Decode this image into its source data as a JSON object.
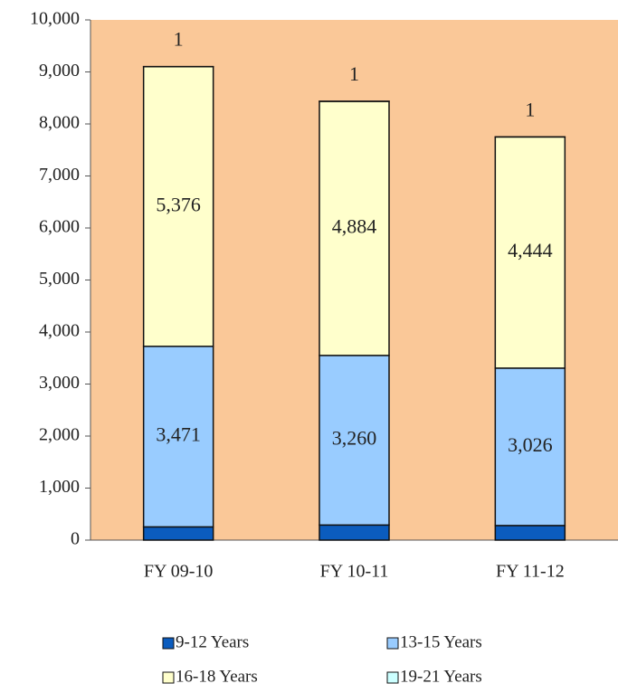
{
  "chart_data": {
    "type": "bar",
    "stacked": true,
    "categories": [
      "FY 09-10",
      "FY 10-11",
      "FY 11-12"
    ],
    "series": [
      {
        "name": "9-12 Years",
        "color": "#0b5cbe",
        "label_color": "#ffffff",
        "values": [
          254,
          290,
          280
        ]
      },
      {
        "name": "13-15 Years",
        "color": "#99ccff",
        "label_color": "#222222",
        "values": [
          3471,
          3260,
          3026
        ],
        "value_labels": [
          "3,471",
          "3,260",
          "3,026"
        ]
      },
      {
        "name": "16-18 Years",
        "color": "#ffffcc",
        "label_color": "#222222",
        "values": [
          5376,
          4884,
          4444
        ],
        "value_labels": [
          "5,376",
          "4,884",
          "4,444"
        ]
      },
      {
        "name": "19-21 Years",
        "color": "#ccffff",
        "label_color": "#222222",
        "values": [
          1,
          1,
          1
        ]
      }
    ],
    "ylim": [
      0,
      10000
    ],
    "yticks": [
      0,
      {
        "value": 1000,
        "label": "1,000"
      },
      {
        "value": 2000,
        "label": "2,000"
      },
      {
        "value": 3000,
        "label": "3,000"
      },
      {
        "value": 4000,
        "label": "4,000"
      },
      {
        "value": 5000,
        "label": "5,000"
      },
      {
        "value": 6000,
        "label": "6,000"
      },
      {
        "value": 7000,
        "label": "7,000"
      },
      {
        "value": 8000,
        "label": "8,000"
      },
      {
        "value": 9000,
        "label": "9,000"
      },
      {
        "value": 10000,
        "label": "10,000"
      }
    ],
    "plot_background": "#fac898",
    "legend": "bottom"
  }
}
